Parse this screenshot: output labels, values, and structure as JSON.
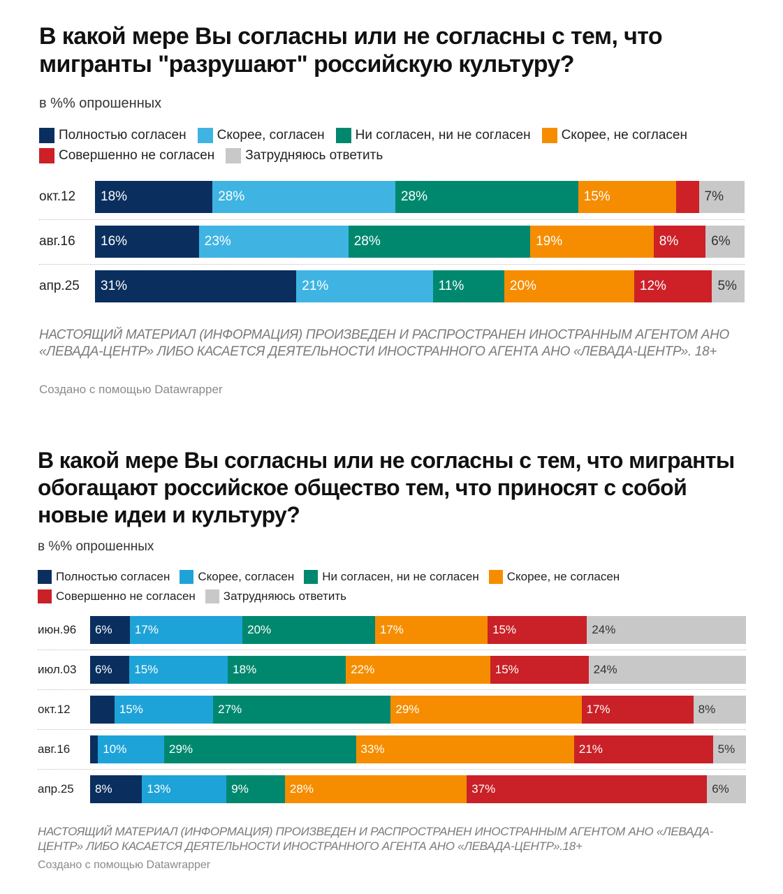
{
  "colors": {
    "full_agree": "#0a2f5f",
    "rather_agree": "#3fb4e3",
    "neither": "#00886f",
    "rather_disagree": "#f68d00",
    "full_disagree": "#cd2027",
    "hard_to_say": "#c8c8c8"
  },
  "chart_data": [
    {
      "type": "bar",
      "orientation": "horizontal-stacked-100",
      "title": "В какой мере Вы согласны или не согласны с тем, что мигранты \"разрушают\" российскую культуру?",
      "subtitle": "в %% опрошенных",
      "legend": [
        {
          "label": "Полностью согласен",
          "color": "#0a2f5f"
        },
        {
          "label": "Скорее, согласен",
          "color": "#3fb4e3"
        },
        {
          "label": "Ни согласен, ни не согласен",
          "color": "#00886f"
        },
        {
          "label": "Скорее, не согласен",
          "color": "#f68d00"
        },
        {
          "label": "Совершенно не согласен",
          "color": "#cd2027"
        },
        {
          "label": "Затрудняюсь ответить",
          "color": "#c8c8c8"
        }
      ],
      "categories": [
        "окт.12",
        "авг.16",
        "апр.25"
      ],
      "series": [
        {
          "name": "Полностью согласен",
          "values": [
            18,
            16,
            31
          ],
          "labels": [
            "18%",
            "16%",
            "31%"
          ]
        },
        {
          "name": "Скорее, согласен",
          "values": [
            28,
            23,
            21
          ],
          "labels": [
            "28%",
            "23%",
            "21%"
          ]
        },
        {
          "name": "Ни согласен, ни не согласен",
          "values": [
            28,
            28,
            11
          ],
          "labels": [
            "28%",
            "28%",
            "11%"
          ]
        },
        {
          "name": "Скорее, не согласен",
          "values": [
            15,
            19,
            20
          ],
          "labels": [
            "15%",
            "19%",
            "20%"
          ]
        },
        {
          "name": "Совершенно не согласен",
          "values": [
            3.5,
            8,
            12
          ],
          "labels": [
            "",
            "8%",
            "12%"
          ]
        },
        {
          "name": "Затрудняюсь ответить",
          "values": [
            7,
            6,
            5
          ],
          "labels": [
            "7%",
            "6%",
            "5%"
          ]
        }
      ],
      "note": "НАСТОЯЩИЙ МАТЕРИАЛ (ИНФОРМАЦИЯ) ПРОИЗВЕДЕН И РАСПРОСТРАНЕН ИНОСТРАННЫМ АГЕНТОМ АНО «ЛЕВАДА-ЦЕНТР» ЛИБО КАСАЕТСЯ ДЕЯТЕЛЬНОСТИ ИНОСТРАННОГО АГЕНТА АНО «ЛЕВАДА-ЦЕНТР». 18+",
      "credit": "Создано с помощью Datawrapper"
    },
    {
      "type": "bar",
      "orientation": "horizontal-stacked-100",
      "title": "В какой мере Вы согласны или не согласны с тем, что мигранты обогащают российское общество тем, что приносят с собой новые идеи и культуру?",
      "subtitle": "в %% опрошенных",
      "legend": [
        {
          "label": "Полностью согласен",
          "color": "#0a2f5f"
        },
        {
          "label": "Скорее, согласен",
          "color": "#1ea3d8"
        },
        {
          "label": "Ни согласен, ни не согласен",
          "color": "#00886f"
        },
        {
          "label": "Скорее, не согласен",
          "color": "#f68d00"
        },
        {
          "label": "Совершенно не согласен",
          "color": "#c92127"
        },
        {
          "label": "Затрудняюсь ответить",
          "color": "#c8c8c8"
        }
      ],
      "categories": [
        "июн.96",
        "июл.03",
        "окт.12",
        "авг.16",
        "апр.25"
      ],
      "series": [
        {
          "name": "Полностью согласен",
          "values": [
            6,
            6,
            3.7,
            1.2,
            8
          ],
          "labels": [
            "6%",
            "6%",
            "",
            "",
            "8%"
          ]
        },
        {
          "name": "Скорее, согласен",
          "values": [
            17,
            15,
            15,
            10,
            13
          ],
          "labels": [
            "17%",
            "15%",
            "15%",
            "10%",
            "13%"
          ]
        },
        {
          "name": "Ни согласен, ни не согласен",
          "values": [
            20,
            18,
            27,
            29,
            9
          ],
          "labels": [
            "20%",
            "18%",
            "27%",
            "29%",
            "9%"
          ]
        },
        {
          "name": "Скорее, не согласен",
          "values": [
            17,
            22,
            29,
            33,
            28
          ],
          "labels": [
            "17%",
            "22%",
            "29%",
            "33%",
            "28%"
          ]
        },
        {
          "name": "Совершенно не согласен",
          "values": [
            15,
            15,
            17,
            21,
            37
          ],
          "labels": [
            "15%",
            "15%",
            "17%",
            "21%",
            "37%"
          ]
        },
        {
          "name": "Затрудняюсь ответить",
          "values": [
            24,
            24,
            8,
            5,
            6
          ],
          "labels": [
            "24%",
            "24%",
            "8%",
            "5%",
            "6%"
          ]
        }
      ],
      "note": "НАСТОЯЩИЙ МАТЕРИАЛ (ИНФОРМАЦИЯ) ПРОИЗВЕДЕН И РАСПРОСТРАНЕН ИНОСТРАННЫМ АГЕНТОМ АНО «ЛЕВАДА-ЦЕНТР» ЛИБО КАСАЕТСЯ ДЕЯТЕЛЬНОСТИ ИНОСТРАННОГО АГЕНТА АНО «ЛЕВАДА-ЦЕНТР».18+",
      "credit": "Создано с помощью Datawrapper"
    }
  ]
}
